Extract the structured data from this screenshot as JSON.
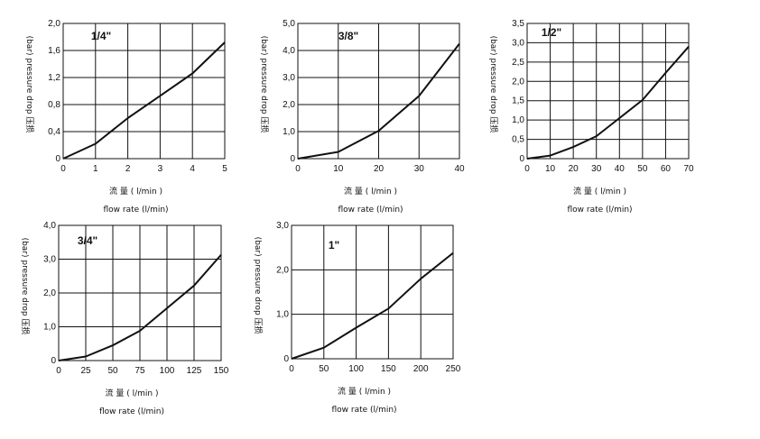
{
  "chart_data": [
    {
      "type": "line",
      "title": "1/4\"",
      "xlabel_cn": "流 量 ( l/min )",
      "xlabel": "flow rate (l/min)",
      "ylabel": "(bar) pressure drop 压损",
      "xlim": [
        0,
        5
      ],
      "ylim": [
        0,
        2.0
      ],
      "xticks": [
        "0",
        "1",
        "2",
        "3",
        "4",
        "5"
      ],
      "yticks": [
        "0",
        "0,4",
        "0,8",
        "1,2",
        "1,6",
        "2,0"
      ],
      "grid": true,
      "x": [
        0,
        1,
        2,
        3,
        4,
        5
      ],
      "values": [
        0,
        0.22,
        0.6,
        0.93,
        1.26,
        1.72
      ]
    },
    {
      "type": "line",
      "title": "3/8\"",
      "xlabel_cn": "流 量 ( l/min )",
      "xlabel": "flow rate (l/min)",
      "ylabel": "(bar) pressure drop 压损",
      "xlim": [
        0,
        40
      ],
      "ylim": [
        0,
        5.0
      ],
      "xticks": [
        "0",
        "10",
        "20",
        "30",
        "40"
      ],
      "yticks": [
        "0",
        "1,0",
        "2,0",
        "3,0",
        "4,0",
        "5,0"
      ],
      "grid": true,
      "x": [
        0,
        10,
        20,
        30,
        40
      ],
      "values": [
        0,
        0.25,
        1.03,
        2.32,
        4.25
      ]
    },
    {
      "type": "line",
      "title": "1/2\"",
      "xlabel_cn": "流 量 ( l/min )",
      "xlabel": "flow rate (l/min)",
      "ylabel": "(bar) pressure drop 压损",
      "xlim": [
        0,
        70
      ],
      "ylim": [
        0,
        3.5
      ],
      "xticks": [
        "0",
        "10",
        "20",
        "30",
        "40",
        "50",
        "60",
        "70"
      ],
      "yticks": [
        "0",
        "0,5",
        "1,0",
        "1,5",
        "2,0",
        "2,5",
        "3,0",
        "3,5"
      ],
      "grid": true,
      "x": [
        0,
        10,
        20,
        30,
        40,
        50,
        60,
        70
      ],
      "values": [
        0,
        0.08,
        0.3,
        0.58,
        1.05,
        1.52,
        2.22,
        2.9
      ]
    },
    {
      "type": "line",
      "title": "3/4\"",
      "xlabel_cn": "流 量 ( l/min )",
      "xlabel": "flow rate (l/min)",
      "ylabel": "(bar) pressure drop 压损",
      "xlim": [
        0,
        150
      ],
      "ylim": [
        0,
        4.0
      ],
      "xticks": [
        "0",
        "25",
        "50",
        "75",
        "100",
        "125",
        "150"
      ],
      "yticks": [
        "0",
        "1,0",
        "2,0",
        "3,0",
        "4,0"
      ],
      "grid": true,
      "x": [
        0,
        25,
        50,
        75,
        100,
        125,
        150
      ],
      "values": [
        0,
        0.12,
        0.45,
        0.88,
        1.55,
        2.22,
        3.13
      ]
    },
    {
      "type": "line",
      "title": "1\"",
      "xlabel_cn": "流 量 ( l/min )",
      "xlabel": "flow rate (l/min)",
      "ylabel": "(bar) pressure drop 压损",
      "xlim": [
        0,
        250
      ],
      "ylim": [
        0,
        3.0
      ],
      "xticks": [
        "0",
        "50",
        "100",
        "150",
        "200",
        "250"
      ],
      "yticks": [
        "0",
        "1,0",
        "2,0",
        "3,0"
      ],
      "grid": true,
      "x": [
        0,
        50,
        100,
        150,
        200,
        250
      ],
      "values": [
        0,
        0.25,
        0.7,
        1.13,
        1.8,
        2.38
      ]
    }
  ]
}
